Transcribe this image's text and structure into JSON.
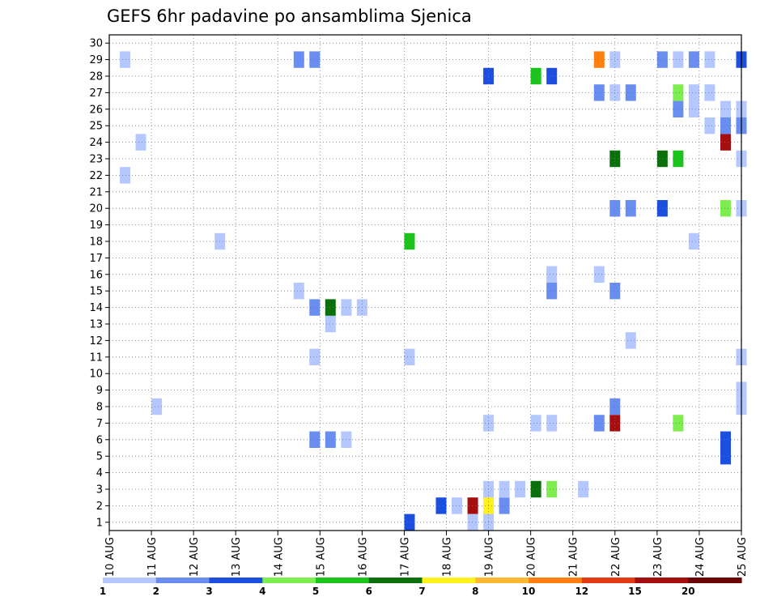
{
  "chart_data": {
    "type": "heatmap",
    "title": "GEFS 6hr padavine po ansamblima Sjenica",
    "x_tick_labels": [
      "10 AUG",
      "11 AUG",
      "12 AUG",
      "13 AUG",
      "14 AUG",
      "15 AUG",
      "16 AUG",
      "17 AUG",
      "18 AUG",
      "19 AUG",
      "20 AUG",
      "21 AUG",
      "22 AUG",
      "23 AUG",
      "24 AUG",
      "25 AUG"
    ],
    "x_range": [
      0,
      60
    ],
    "y_tick_labels": [
      "1",
      "2",
      "3",
      "4",
      "5",
      "6",
      "7",
      "8",
      "9",
      "10",
      "11",
      "12",
      "13",
      "14",
      "15",
      "16",
      "17",
      "18",
      "19",
      "20",
      "21",
      "22",
      "23",
      "24",
      "25",
      "26",
      "27",
      "28",
      "29",
      "30"
    ],
    "y_range": [
      0.5,
      30.5
    ],
    "grid": true,
    "legend_labels": [
      "1",
      "2",
      "3",
      "4",
      "5",
      "6",
      "7",
      "8",
      "10",
      "12",
      "15",
      "20"
    ],
    "level_colors": [
      "#b4c7ff",
      "#6a8df0",
      "#1c4fdf",
      "#7ded4f",
      "#1cc31c",
      "#0b700b",
      "#fff21c",
      "#ffb830",
      "#ff7f10",
      "#e53b14",
      "#a40e0e",
      "#6b0606"
    ],
    "cells": [
      {
        "x": 9.5,
        "y": 1,
        "v": 3
      },
      {
        "x": 10.5,
        "y": 2,
        "v": 3
      },
      {
        "x": 11,
        "y": 2,
        "v": 1
      },
      {
        "x": 11.5,
        "y": 2,
        "v": 15
      },
      {
        "x": 12,
        "y": 2,
        "v": 7
      },
      {
        "x": 12.5,
        "y": 2,
        "v": 2
      },
      {
        "x": 11.5,
        "y": 1,
        "v": 1
      },
      {
        "x": 12,
        "y": 1,
        "v": 1
      },
      {
        "x": 12,
        "y": 3,
        "v": 1
      },
      {
        "x": 12.5,
        "y": 3,
        "v": 1
      },
      {
        "x": 13,
        "y": 3,
        "v": 1
      },
      {
        "x": 13.5,
        "y": 3,
        "v": 6
      },
      {
        "x": 14,
        "y": 3,
        "v": 4
      },
      {
        "x": 15,
        "y": 3,
        "v": 1
      },
      {
        "x": 12,
        "y": 7,
        "v": 1
      },
      {
        "x": 13.5,
        "y": 7,
        "v": 1
      },
      {
        "x": 14,
        "y": 7,
        "v": 1
      },
      {
        "x": 15.5,
        "y": 7,
        "v": 2
      },
      {
        "x": 16,
        "y": 7,
        "v": 15
      },
      {
        "x": 18,
        "y": 7,
        "v": 4
      },
      {
        "x": 16,
        "y": 8,
        "v": 2
      },
      {
        "x": 19.5,
        "y": 6,
        "v": 3
      },
      {
        "x": 19.5,
        "y": 5,
        "v": 3
      },
      {
        "x": 20,
        "y": 8,
        "v": 1
      },
      {
        "x": 20,
        "y": 9,
        "v": 1
      },
      {
        "x": 6.5,
        "y": 6,
        "v": 2
      },
      {
        "x": 7,
        "y": 6,
        "v": 2
      },
      {
        "x": 7.5,
        "y": 6,
        "v": 1
      },
      {
        "x": 1.5,
        "y": 8,
        "v": 1
      },
      {
        "x": 6.5,
        "y": 11,
        "v": 1
      },
      {
        "x": 9.5,
        "y": 11,
        "v": 1
      },
      {
        "x": 20,
        "y": 11,
        "v": 1
      },
      {
        "x": 16.5,
        "y": 12,
        "v": 1
      },
      {
        "x": 7,
        "y": 13,
        "v": 1
      },
      {
        "x": 6.5,
        "y": 14,
        "v": 2
      },
      {
        "x": 7,
        "y": 14,
        "v": 6
      },
      {
        "x": 7.5,
        "y": 14,
        "v": 1
      },
      {
        "x": 8,
        "y": 14,
        "v": 1
      },
      {
        "x": 6,
        "y": 15,
        "v": 1
      },
      {
        "x": 14,
        "y": 15,
        "v": 2
      },
      {
        "x": 16,
        "y": 15,
        "v": 2
      },
      {
        "x": 14,
        "y": 16,
        "v": 1
      },
      {
        "x": 15.5,
        "y": 16,
        "v": 1
      },
      {
        "x": 3.5,
        "y": 18,
        "v": 1
      },
      {
        "x": 9.5,
        "y": 18,
        "v": 5
      },
      {
        "x": 18.5,
        "y": 18,
        "v": 1
      },
      {
        "x": 16,
        "y": 20,
        "v": 2
      },
      {
        "x": 16.5,
        "y": 20,
        "v": 2
      },
      {
        "x": 17.5,
        "y": 20,
        "v": 3
      },
      {
        "x": 19.5,
        "y": 20,
        "v": 4
      },
      {
        "x": 20,
        "y": 20,
        "v": 1
      },
      {
        "x": 0.5,
        "y": 22,
        "v": 1
      },
      {
        "x": 16,
        "y": 23,
        "v": 6
      },
      {
        "x": 17.5,
        "y": 23,
        "v": 6
      },
      {
        "x": 18,
        "y": 23,
        "v": 5
      },
      {
        "x": 20,
        "y": 23,
        "v": 1
      },
      {
        "x": 1,
        "y": 24,
        "v": 1
      },
      {
        "x": 19.5,
        "y": 24,
        "v": 15
      },
      {
        "x": 19,
        "y": 25,
        "v": 1
      },
      {
        "x": 19.5,
        "y": 25,
        "v": 2
      },
      {
        "x": 20,
        "y": 25,
        "v": 2
      },
      {
        "x": 18,
        "y": 26,
        "v": 2
      },
      {
        "x": 18.5,
        "y": 26,
        "v": 1
      },
      {
        "x": 19.5,
        "y": 26,
        "v": 1
      },
      {
        "x": 20,
        "y": 26,
        "v": 1
      },
      {
        "x": 15.5,
        "y": 27,
        "v": 2
      },
      {
        "x": 16,
        "y": 27,
        "v": 1
      },
      {
        "x": 16.5,
        "y": 27,
        "v": 2
      },
      {
        "x": 18,
        "y": 27,
        "v": 4
      },
      {
        "x": 18.5,
        "y": 27,
        "v": 1
      },
      {
        "x": 19,
        "y": 27,
        "v": 1
      },
      {
        "x": 12,
        "y": 28,
        "v": 3
      },
      {
        "x": 13.5,
        "y": 28,
        "v": 5
      },
      {
        "x": 14,
        "y": 28,
        "v": 3
      },
      {
        "x": 0.5,
        "y": 29,
        "v": 1
      },
      {
        "x": 6,
        "y": 29,
        "v": 2
      },
      {
        "x": 6.5,
        "y": 29,
        "v": 2
      },
      {
        "x": 15.5,
        "y": 29,
        "v": 10
      },
      {
        "x": 16,
        "y": 29,
        "v": 1
      },
      {
        "x": 17.5,
        "y": 29,
        "v": 2
      },
      {
        "x": 18,
        "y": 29,
        "v": 1
      },
      {
        "x": 18.5,
        "y": 29,
        "v": 2
      },
      {
        "x": 19,
        "y": 29,
        "v": 1
      },
      {
        "x": 20,
        "y": 29,
        "v": 3
      }
    ]
  }
}
